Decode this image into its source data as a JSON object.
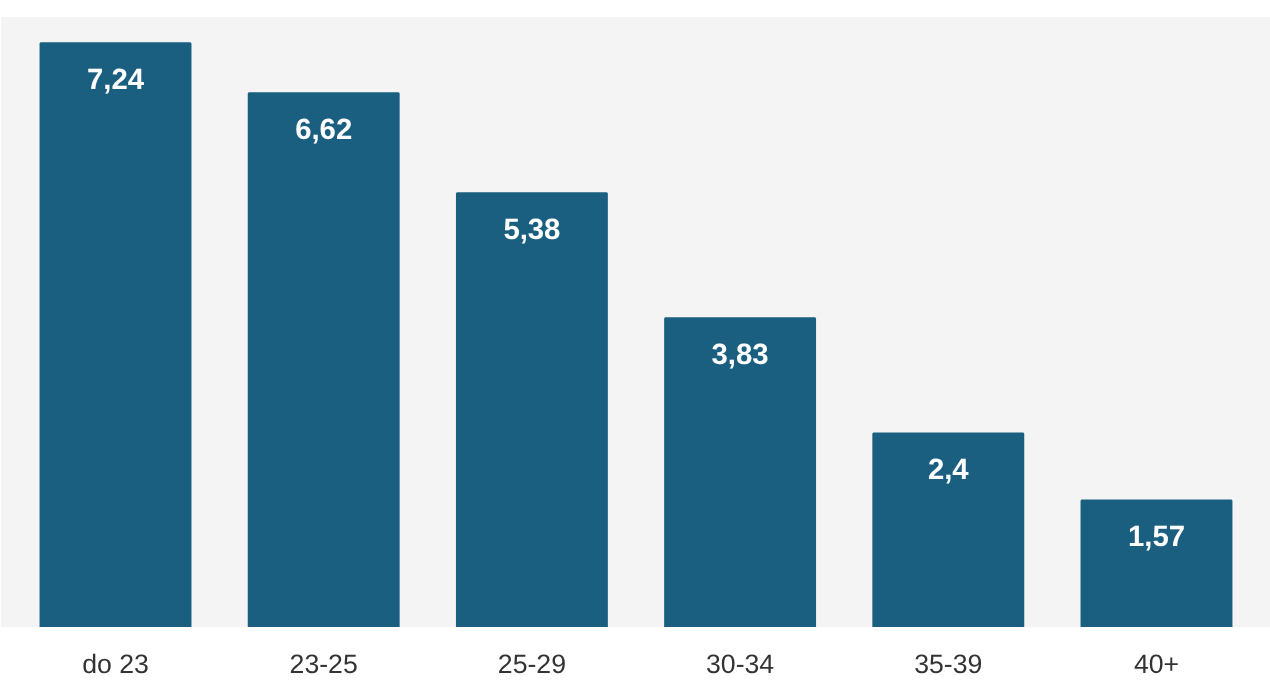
{
  "chart_data": {
    "type": "bar",
    "categories": [
      "do 23",
      "23-25",
      "25-29",
      "30-34",
      "35-39",
      "40+"
    ],
    "values": [
      7.24,
      6.62,
      5.38,
      3.83,
      2.4,
      1.57
    ],
    "value_labels": [
      "7,24",
      "6,62",
      "5,38",
      "3,83",
      "2,4",
      "1,57"
    ],
    "color": "#1a5f80",
    "grid": false
  }
}
